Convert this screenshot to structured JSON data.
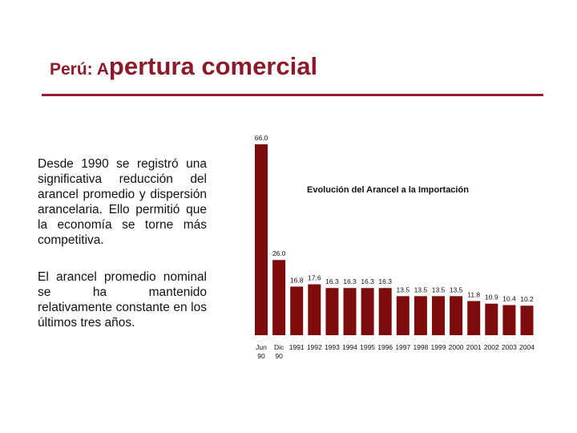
{
  "slide": {
    "title_lead": "Perú: A",
    "title_rest": "pertura comercial",
    "paragraphs": [
      "Desde 1990 se registró una significativa reducción del arancel promedio y dispersión arancelaria. Ello permitió que la economía se torne más competitiva.",
      "El arancel promedio nominal se ha mantenido relativamente constante en los últimos tres años."
    ]
  },
  "colors": {
    "title": "#8b1a2b",
    "rule": "#9b1b2e",
    "bar": "#7f0c0c"
  },
  "chart_data": {
    "type": "bar",
    "title": "Evolución del Arancel a la Importación",
    "categories": [
      [
        "Jun",
        "90"
      ],
      [
        "Dic",
        "90"
      ],
      [
        "1991"
      ],
      [
        "1992"
      ],
      [
        "1993"
      ],
      [
        "1994"
      ],
      [
        "1995"
      ],
      [
        "1996"
      ],
      [
        "1997"
      ],
      [
        "1998"
      ],
      [
        "1999"
      ],
      [
        "2000"
      ],
      [
        "2001"
      ],
      [
        "2002"
      ],
      [
        "2003"
      ],
      [
        "2004"
      ]
    ],
    "values": [
      66.0,
      26.0,
      16.8,
      17.6,
      16.3,
      16.3,
      16.3,
      16.3,
      13.5,
      13.5,
      13.5,
      13.5,
      11.8,
      10.9,
      10.4,
      10.2
    ],
    "labels": [
      "66.0",
      "26.0",
      "16.8",
      "17.6",
      "16.3",
      "16.3",
      "16.3",
      "16.3",
      "13.5",
      "13.5",
      "13.5",
      "13.5",
      "11.8",
      "10.9",
      "10.4",
      "10.2"
    ],
    "xlabel": "",
    "ylabel": "",
    "ylim": [
      0,
      66
    ],
    "grid": false,
    "legend": "none"
  }
}
